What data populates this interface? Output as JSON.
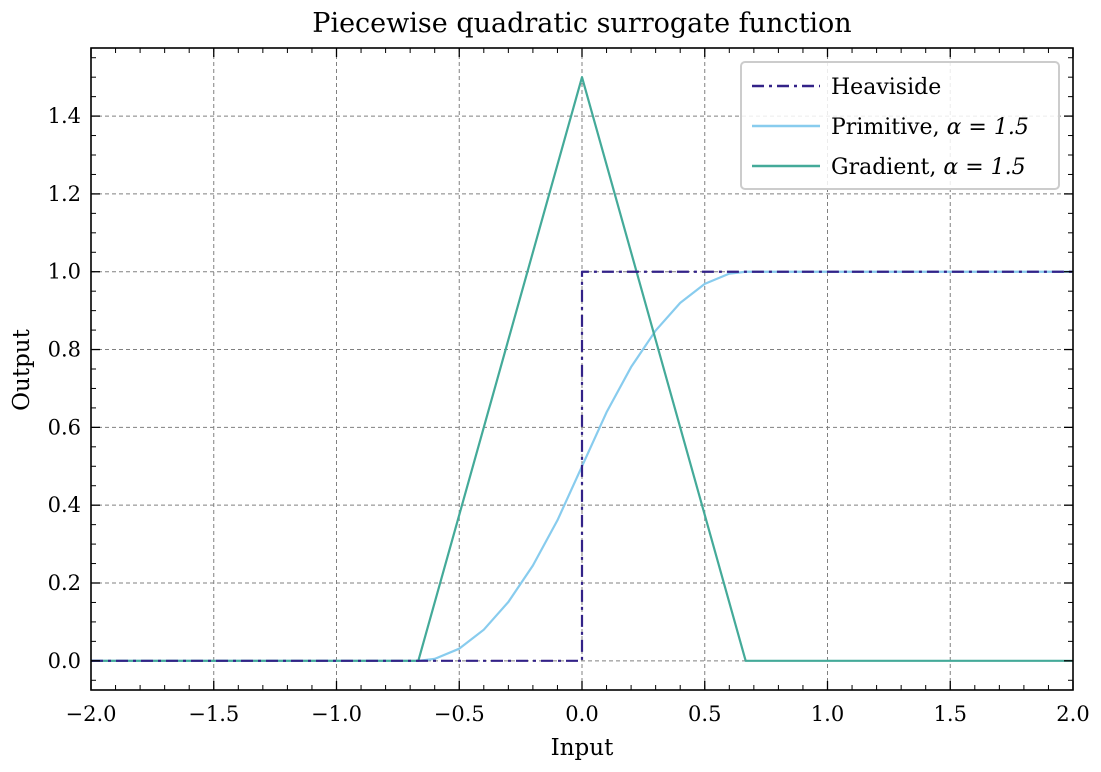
{
  "chart_data": {
    "type": "line",
    "title": "Piecewise quadratic surrogate function",
    "xlabel": "Input",
    "ylabel": "Output",
    "xlim": [
      -2.0,
      2.0
    ],
    "ylim": [
      -0.075,
      1.575
    ],
    "grid": true,
    "legend_position": "top-right",
    "x_ticks": [
      -2.0,
      -1.5,
      -1.0,
      -0.5,
      0.0,
      0.5,
      1.0,
      1.5,
      2.0
    ],
    "x_tick_labels": [
      "−2.0",
      "−1.5",
      "−1.0",
      "−0.5",
      "0.0",
      "0.5",
      "1.0",
      "1.5",
      "2.0"
    ],
    "y_ticks": [
      0.0,
      0.2,
      0.4,
      0.6,
      0.8,
      1.0,
      1.2,
      1.4
    ],
    "y_tick_labels": [
      "0.0",
      "0.2",
      "0.4",
      "0.6",
      "0.8",
      "1.0",
      "1.2",
      "1.4"
    ],
    "series": [
      {
        "name": "Heaviside",
        "legend_prefix": "Heaviside",
        "legend_math": "",
        "color": "#332288",
        "style": "dashdot",
        "x": [
          -2.0,
          0.0,
          0.0,
          2.0
        ],
        "y": [
          0.0,
          0.0,
          1.0,
          1.0
        ]
      },
      {
        "name": "Primitive, α = 1.5",
        "legend_prefix": "Primitive, ",
        "legend_math": "α = 1.5",
        "color": "#88CCEE",
        "style": "solid",
        "x": [
          -2.0,
          -0.6667,
          -0.6,
          -0.5,
          -0.4,
          -0.3,
          -0.2,
          -0.1,
          0.0,
          0.1,
          0.2,
          0.3,
          0.4,
          0.5,
          0.6,
          0.6667,
          2.0
        ],
        "y": [
          0.0,
          0.0,
          0.005,
          0.0312,
          0.08,
          0.1512,
          0.245,
          0.3612,
          0.5,
          0.6388,
          0.755,
          0.8488,
          0.92,
          0.9688,
          0.995,
          1.0,
          1.0
        ]
      },
      {
        "name": "Gradient, α = 1.5",
        "legend_prefix": "Gradient, ",
        "legend_math": "α = 1.5",
        "color": "#44AA99",
        "style": "solid",
        "x": [
          -2.0,
          -0.6667,
          0.0,
          0.6667,
          2.0
        ],
        "y": [
          0.0,
          0.0,
          1.5,
          0.0,
          0.0
        ]
      }
    ]
  }
}
